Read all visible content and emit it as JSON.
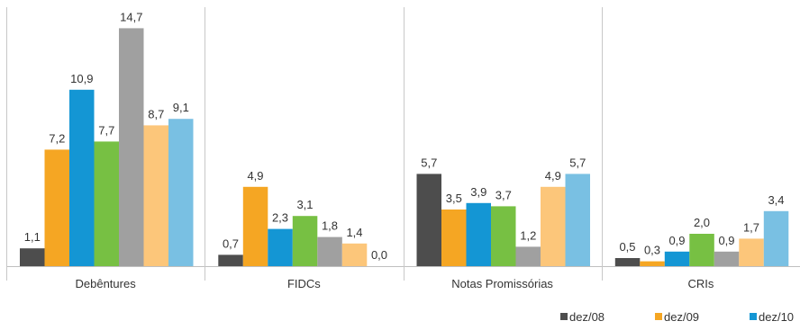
{
  "chart_data": {
    "type": "bar",
    "categories": [
      "Debêntures",
      "FIDCs",
      "Notas Promissórias",
      "CRIs"
    ],
    "series": [
      {
        "name": "dez/08",
        "color": "#4d4d4d",
        "values": [
          1.1,
          0.7,
          5.7,
          0.5
        ]
      },
      {
        "name": "dez/09",
        "color": "#f5a623",
        "values": [
          7.2,
          4.9,
          3.5,
          0.3
        ]
      },
      {
        "name": "dez/10",
        "color": "#1496d4",
        "values": [
          10.9,
          2.3,
          3.9,
          0.9
        ]
      },
      {
        "name": "",
        "color": "#77c043",
        "values": [
          7.7,
          3.1,
          3.7,
          2.0
        ]
      },
      {
        "name": "",
        "color": "#a0a0a0",
        "values": [
          14.7,
          1.8,
          1.2,
          0.9
        ]
      },
      {
        "name": "",
        "color": "#fcc67a",
        "values": [
          8.7,
          1.4,
          4.9,
          1.7
        ]
      },
      {
        "name": "",
        "color": "#79c0e3",
        "values": [
          9.1,
          0.0,
          5.7,
          3.4
        ]
      }
    ],
    "value_labels": [
      [
        "1,1",
        "0,7",
        "5,7",
        "0,5"
      ],
      [
        "7,2",
        "4,9",
        "3,5",
        "0,3"
      ],
      [
        "10,9",
        "2,3",
        "3,9",
        "0,9"
      ],
      [
        "7,7",
        "3,1",
        "3,7",
        "2,0"
      ],
      [
        "14,7",
        "1,8",
        "1,2",
        "0,9"
      ],
      [
        "8,7",
        "1,4",
        "4,9",
        "1,7"
      ],
      [
        "9,1",
        "0,0",
        "5,7",
        "3,4"
      ]
    ],
    "ylim": [
      0,
      15
    ],
    "legend_position": "bottom-right",
    "grid": false
  }
}
